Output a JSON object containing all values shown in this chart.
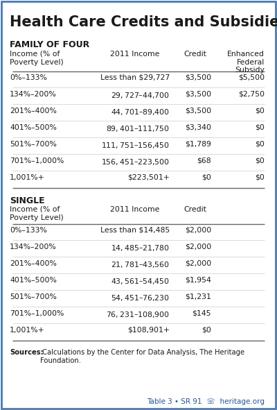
{
  "title": "Health Care Credits and Subsidies",
  "bg_color": "#ffffff",
  "border_color": "#4a7ab5",
  "section1_header": "FAMILY OF FOUR",
  "section2_header": "SINGLE",
  "fof_rows": [
    [
      "0%–133%",
      "Less than $29,727",
      "$3,500",
      "$5,500"
    ],
    [
      "134%–200%",
      "$29,727–$44,700",
      "$3,500",
      "$2,750"
    ],
    [
      "201%–400%",
      "$44,701–$89,400",
      "$3,500",
      "$0"
    ],
    [
      "401%–500%",
      "$89,401–$111,750",
      "$3,340",
      "$0"
    ],
    [
      "501%–700%",
      "$111,751–$156,450",
      "$1,789",
      "$0"
    ],
    [
      "701%–1,000%",
      "$156,451–$223,500",
      "$68",
      "$0"
    ],
    [
      "1,001%+",
      "$223,501+",
      "$0",
      "$0"
    ]
  ],
  "single_rows": [
    [
      "0%–133%",
      "Less than $14,485",
      "$2,000"
    ],
    [
      "134%–200%",
      "$14,485–$21,780",
      "$2,000"
    ],
    [
      "201%–400%",
      "$21,781–$43,560",
      "$2,000"
    ],
    [
      "401%–500%",
      "$43,561–$54,450",
      "$1,954"
    ],
    [
      "501%–700%",
      "$54,451–$76,230",
      "$1,231"
    ],
    [
      "701%–1,000%",
      "$76,231–$108,900",
      "$145"
    ],
    [
      "1,001%+",
      "$108,901+",
      "$0"
    ]
  ],
  "text_color": "#333333",
  "dark_color": "#1a1a1a",
  "line_color": "#aaaaaa",
  "strong_line_color": "#666666",
  "footer_color": "#2255aa",
  "title_fontsize": 15,
  "section_fontsize": 9,
  "header_fontsize": 7.8,
  "row_fontsize": 7.8,
  "source_fontsize": 7.2,
  "footer_fontsize": 7.5
}
